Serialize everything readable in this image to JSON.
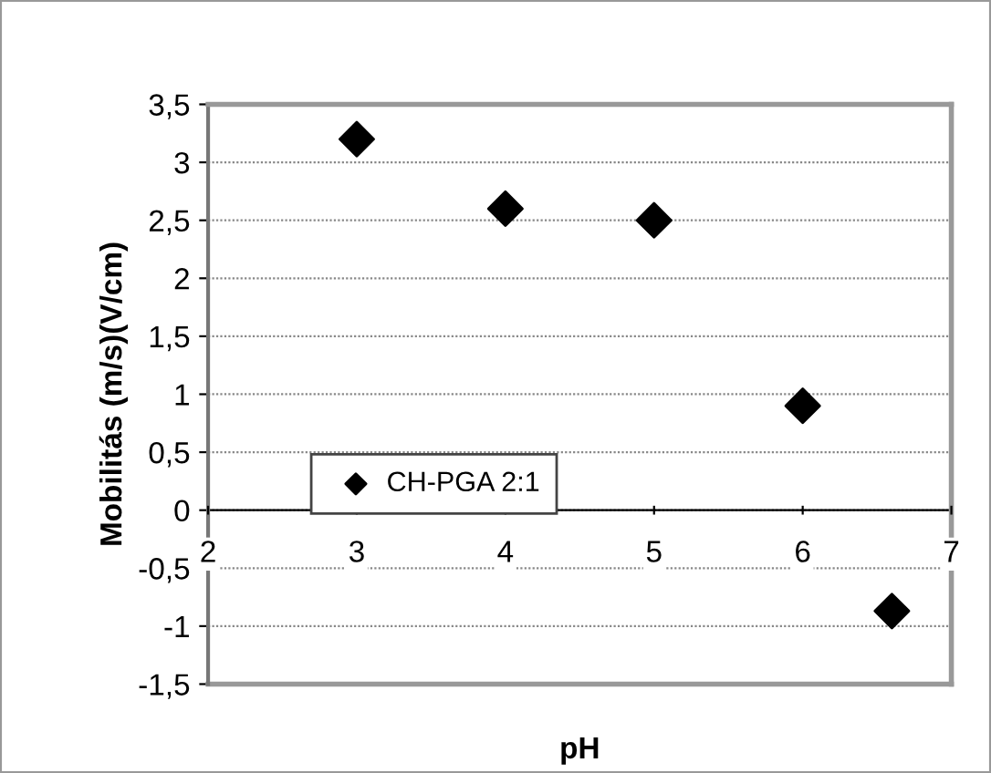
{
  "chart_data": {
    "type": "scatter",
    "xlabel": "pH",
    "ylabel": "Mobilitás (m/s)(V/cm)",
    "x": [
      3,
      4,
      5,
      6,
      6.6
    ],
    "series": [
      {
        "name": "CH-PGA 2:1",
        "color": "#000000",
        "values": [
          3.2,
          2.6,
          2.5,
          0.9,
          -0.87
        ]
      }
    ],
    "marker": "diamond",
    "grid": "y",
    "legend": "lower left",
    "xlim": [
      2,
      7
    ],
    "xticks": [
      2,
      3,
      4,
      5,
      6,
      7
    ],
    "ylim": [
      -1.5,
      3.5
    ],
    "yticks": [
      {
        "value": -1.5,
        "label": "-1,5"
      },
      -1,
      {
        "value": -0.5,
        "label": "-0,5"
      },
      0,
      {
        "value": 0.5,
        "label": "0,5"
      },
      1,
      {
        "value": 1.5,
        "label": "1,5"
      },
      2,
      {
        "value": 2.5,
        "label": "2,5"
      },
      3,
      {
        "value": 3.5,
        "label": "3,5"
      }
    ]
  }
}
